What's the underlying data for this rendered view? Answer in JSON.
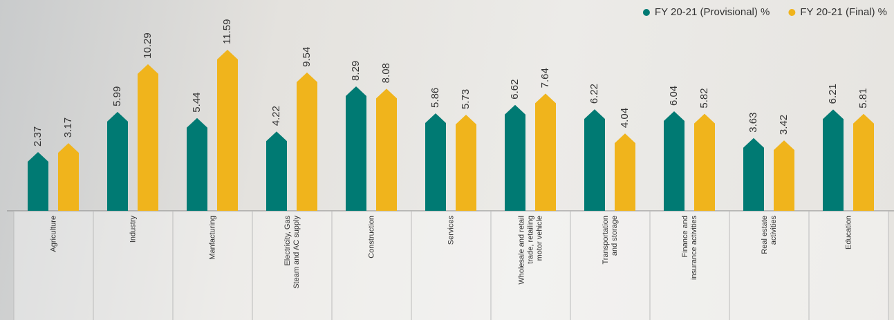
{
  "chart_data": {
    "type": "bar",
    "categories": [
      [
        "Agriculture"
      ],
      [
        "Industry"
      ],
      [
        "Manfacturing"
      ],
      [
        "Electricity, Gas",
        "Steam and AC supply"
      ],
      [
        "Construction"
      ],
      [
        "Services"
      ],
      [
        "Wholesale and retail",
        "trade, retailing",
        "motor vehicle"
      ],
      [
        "Transportation",
        "and storage"
      ],
      [
        "Finance and",
        "insurance activities"
      ],
      [
        "Real estate",
        "activities"
      ],
      [
        "Education"
      ]
    ],
    "series": [
      {
        "name": "FY 20-21 (Provisional) %",
        "color": "#007a73",
        "values": [
          2.37,
          5.99,
          5.44,
          4.22,
          8.29,
          5.86,
          6.62,
          6.22,
          6.04,
          3.63,
          6.21
        ]
      },
      {
        "name": "FY 20-21 (Final) %",
        "color": "#f0b41c",
        "values": [
          3.17,
          10.29,
          11.59,
          9.54,
          8.08,
          5.73,
          7.64,
          4.04,
          5.82,
          3.42,
          5.81
        ]
      }
    ],
    "legend": "top-right"
  }
}
